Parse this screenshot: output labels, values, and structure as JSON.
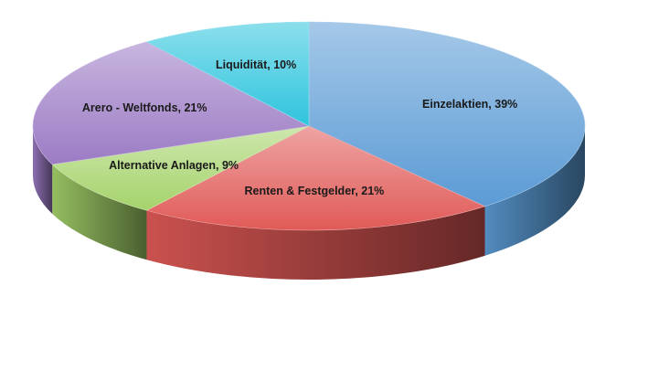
{
  "chart_data": {
    "type": "pie",
    "title": "",
    "three_d": true,
    "slices": [
      {
        "name": "Einzelaktien",
        "value": 39,
        "label": "Einzelaktien, 39%",
        "color": "#5b9bd5"
      },
      {
        "name": "Renten & Festgelder",
        "value": 21,
        "label": "Renten & Festgelder, 21%",
        "color": "#e05a57"
      },
      {
        "name": "Alternative Anlagen",
        "value": 9,
        "label": "Alternative Anlagen, 9%",
        "color": "#a5d36b"
      },
      {
        "name": "Arero - Weltfonds",
        "value": 21,
        "label": "Arero - Weltfonds, 21%",
        "color": "#9b7bc4"
      },
      {
        "name": "Liquidität",
        "value": 10,
        "label": "Liquidität, 10%",
        "color": "#2ec4dd"
      }
    ]
  }
}
